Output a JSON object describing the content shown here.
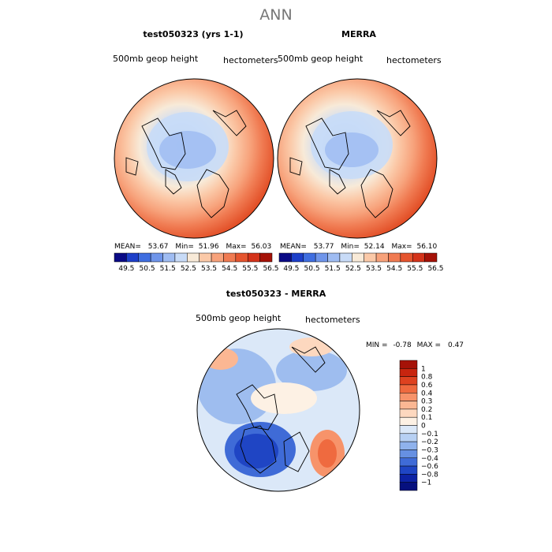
{
  "main_title": "ANN",
  "panels": [
    {
      "title": "test050323 (yrs 1-1)",
      "left_label": "500mb  geop  height",
      "right_label": "hectometers",
      "stats": {
        "mean_label": "MEAN=",
        "mean": "53.67",
        "min_label": "Min=",
        "min": "51.96",
        "max_label": "Max=",
        "max": "56.03"
      }
    },
    {
      "title": "MERRA",
      "left_label": "500mb  geop  height",
      "right_label": "hectometers",
      "stats": {
        "mean_label": "MEAN=",
        "mean": "53.77",
        "min_label": "Min=",
        "min": "52.14",
        "max_label": "Max=",
        "max": "56.10"
      }
    },
    {
      "title": "test050323 - MERRA",
      "left_label": "500mb  geop  height",
      "right_label": "hectometers",
      "stats": {
        "min_label": "MIN =",
        "min": "-0.78",
        "max_label": "MAX =",
        "max": "0.47"
      }
    }
  ],
  "chart_data": [
    {
      "type": "heatmap",
      "projection": "north-polar-stereographic",
      "title": "test050323 (yrs 1-1)",
      "variable": "500mb geop height",
      "units": "hectometers",
      "mean": 53.67,
      "min": 51.96,
      "max": 56.03,
      "colorbar_ticks": [
        "49.5",
        "50.5",
        "51.5",
        "52.5",
        "53.5",
        "54.5",
        "55.5",
        "56.5"
      ],
      "colorbar_colors": [
        "#0a0a85",
        "#1d3fc9",
        "#3f6ee0",
        "#6f95ea",
        "#9fbcf2",
        "#c8dbf7",
        "#f8ead8",
        "#fbc9a8",
        "#f7a27b",
        "#f07b52",
        "#e5552f",
        "#d4331a",
        "#a51208"
      ]
    },
    {
      "type": "heatmap",
      "projection": "north-polar-stereographic",
      "title": "MERRA",
      "variable": "500mb geop height",
      "units": "hectometers",
      "mean": 53.77,
      "min": 52.14,
      "max": 56.1,
      "colorbar_ticks": [
        "49.5",
        "50.5",
        "51.5",
        "52.5",
        "53.5",
        "54.5",
        "55.5",
        "56.5"
      ],
      "colorbar_colors": [
        "#0a0a85",
        "#1d3fc9",
        "#3f6ee0",
        "#6f95ea",
        "#9fbcf2",
        "#c8dbf7",
        "#f8ead8",
        "#fbc9a8",
        "#f7a27b",
        "#f07b52",
        "#e5552f",
        "#d4331a",
        "#a51208"
      ]
    },
    {
      "type": "heatmap",
      "projection": "north-polar-stereographic",
      "title": "test050323 - MERRA",
      "variable": "500mb geop height",
      "units": "hectometers",
      "min": -0.78,
      "max": 0.47,
      "colorbar_ticks": [
        "1",
        "0.8",
        "0.6",
        "0.4",
        "0.3",
        "0.2",
        "0.1",
        "0",
        "−0.1",
        "−0.2",
        "−0.3",
        "−0.4",
        "−0.6",
        "−0.8",
        "−1"
      ],
      "colorbar_colors": [
        "#a51208",
        "#c8250f",
        "#de4220",
        "#ef6a3f",
        "#f7936a",
        "#fbb793",
        "#fdd8bf",
        "#fdf1e4",
        "#dbe8f8",
        "#b7d0f3",
        "#8fb2ec",
        "#6690e2",
        "#3f6bd7",
        "#1f45c4",
        "#0d22a4",
        "#06107e"
      ]
    }
  ]
}
